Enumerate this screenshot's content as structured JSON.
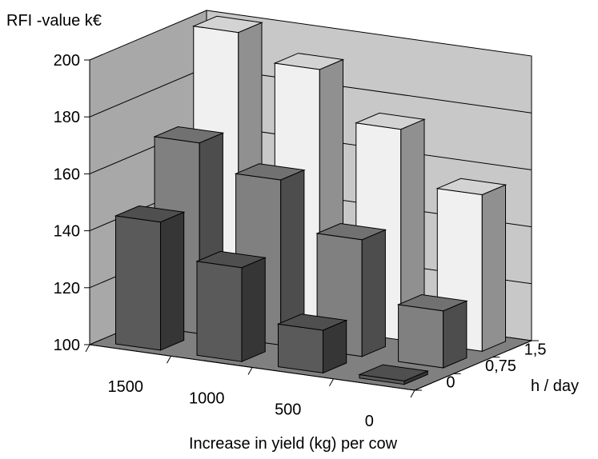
{
  "chart_data": {
    "type": "bar",
    "title": "",
    "ylabel": "RFI -value k€",
    "xlabel": "Increase in yield (kg) per cow",
    "zlabel": "h / day",
    "ylim": [
      100,
      200
    ],
    "yticks": [
      "100",
      "120",
      "140",
      "160",
      "180",
      "200"
    ],
    "categories": [
      "1500",
      "1000",
      "500",
      "0"
    ],
    "series": [
      {
        "name": "0",
        "color": "#5a5a5a",
        "values": [
          145,
          133,
          115,
          100
        ]
      },
      {
        "name": "0,75",
        "color": "#808080",
        "values": [
          167,
          158,
          141,
          120
        ]
      },
      {
        "name": "1,5",
        "color": "#f0f0f0",
        "values": [
          200,
          191,
          174,
          155
        ]
      }
    ],
    "walls": {
      "back": "#c8c8c8",
      "side": "#a8a8a8",
      "floor": "#808080"
    },
    "grid": true,
    "legend": "none"
  }
}
